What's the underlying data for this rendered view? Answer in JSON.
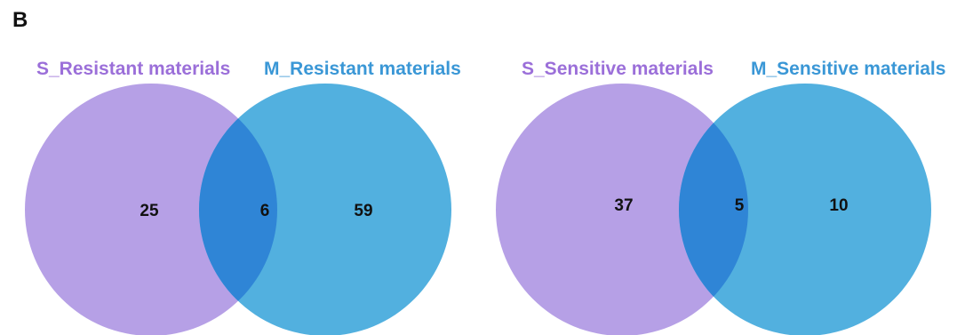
{
  "panel_label": "B",
  "colors": {
    "left_circle": "#b6a0e6",
    "right_circle": "#52b0df",
    "overlap": "#2f85d6",
    "left_label": "#9b6fd9",
    "right_label": "#3a97d6",
    "count_text": "#111111"
  },
  "diagrams": [
    {
      "left_label": "S_Resistant materials",
      "right_label": "M_Resistant materials",
      "left_only": "25",
      "overlap": "6",
      "right_only": "59"
    },
    {
      "left_label": "S_Sensitive materials",
      "right_label": "M_Sensitive materials",
      "left_only": "37",
      "overlap": "5",
      "right_only": "10"
    }
  ]
}
